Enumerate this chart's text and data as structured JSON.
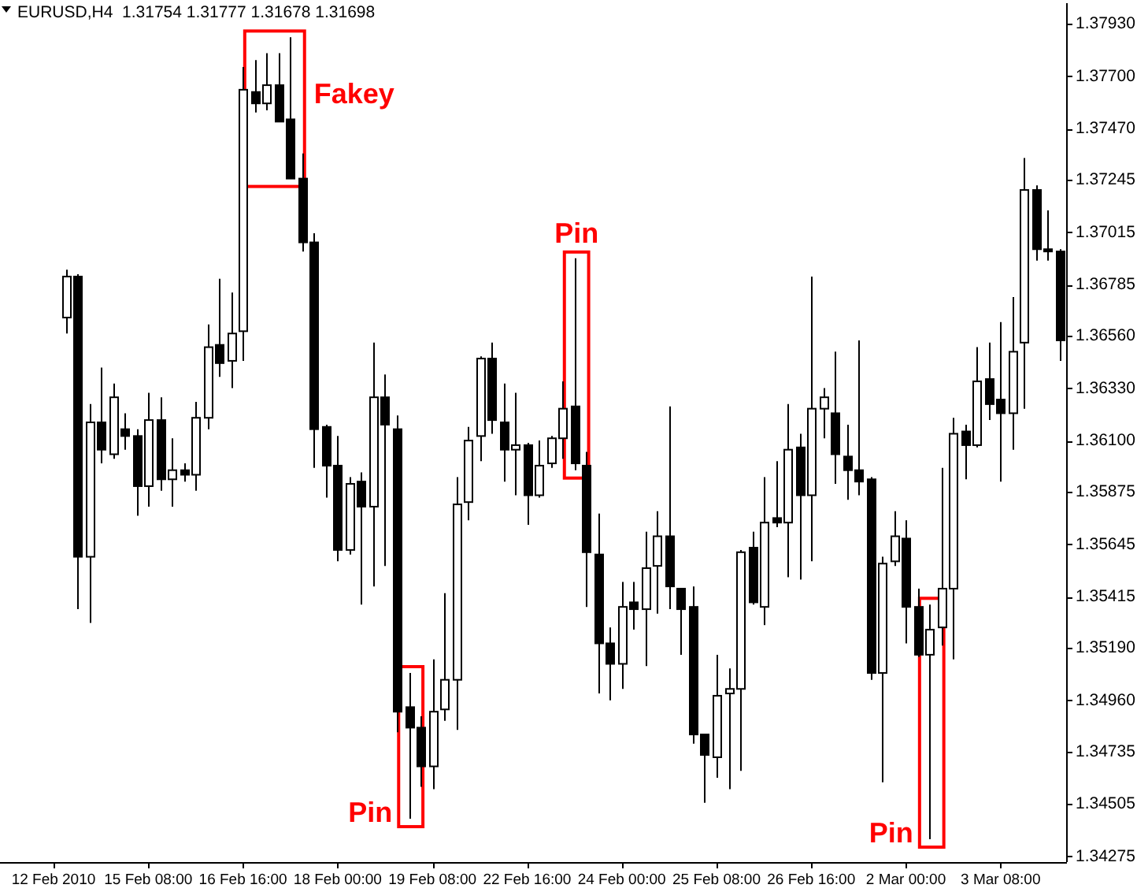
{
  "chart_data": {
    "type": "candlestick",
    "title": "EURUSD,H4  1.31754 1.31777 1.31678 1.31698",
    "categories": [
      "12 Feb 2010",
      null,
      null,
      null,
      null,
      null,
      null,
      null,
      "15 Feb 08:00",
      null,
      null,
      null,
      null,
      null,
      null,
      null,
      "16 Feb 16:00",
      null,
      null,
      null,
      null,
      null,
      null,
      null,
      "18 Feb 00:00",
      null,
      null,
      null,
      null,
      null,
      null,
      null,
      "19 Feb 08:00",
      null,
      null,
      null,
      null,
      null,
      null,
      null,
      "22 Feb 16:00",
      null,
      null,
      null,
      null,
      null,
      null,
      null,
      "24 Feb 00:00",
      null,
      null,
      null,
      null,
      null,
      null,
      null,
      "25 Feb 08:00",
      null,
      null,
      null,
      null,
      null,
      null,
      null,
      "26 Feb 16:00",
      null,
      null,
      null,
      null,
      null,
      null,
      null,
      "2 Mar 00:00",
      null,
      null,
      null,
      null,
      null,
      null,
      null,
      "3 Mar 08:00",
      null,
      null,
      null,
      null,
      null
    ],
    "ohlc": [
      null,
      [
        1.3664,
        1.3685,
        1.3657,
        1.3682
      ],
      [
        1.3682,
        1.3683,
        1.3536,
        1.3559
      ],
      [
        1.3559,
        1.3626,
        1.353,
        1.3618
      ],
      [
        1.3618,
        1.3642,
        1.36,
        1.3606
      ],
      [
        1.3604,
        1.3635,
        1.3602,
        1.3629
      ],
      [
        1.3615,
        1.3622,
        1.3606,
        1.3612
      ],
      [
        1.3612,
        1.3615,
        1.3577,
        1.359
      ],
      [
        1.359,
        1.3631,
        1.3581,
        1.3619
      ],
      [
        1.3619,
        1.3629,
        1.3588,
        1.3593
      ],
      [
        1.3593,
        1.3611,
        1.3581,
        1.3597
      ],
      [
        1.3597,
        1.36,
        1.3592,
        1.3595
      ],
      [
        1.3595,
        1.3627,
        1.3588,
        1.362
      ],
      [
        1.362,
        1.3661,
        1.3615,
        1.3651
      ],
      [
        1.3652,
        1.3681,
        1.3638,
        1.3644
      ],
      [
        1.3645,
        1.3675,
        1.3633,
        1.3657
      ],
      [
        1.3658,
        1.3774,
        1.3645,
        1.3764
      ],
      [
        1.3763,
        1.3777,
        1.3754,
        1.3758
      ],
      [
        1.3758,
        1.378,
        1.3755,
        1.3766
      ],
      [
        1.3766,
        1.378,
        1.375,
        1.375
      ],
      [
        1.3751,
        1.3787,
        1.3725,
        1.3725
      ],
      [
        1.3725,
        1.3736,
        1.3693,
        1.3697
      ],
      [
        1.3697,
        1.3701,
        1.3598,
        1.3615
      ],
      [
        1.3616,
        1.3617,
        1.3585,
        1.3599
      ],
      [
        1.3599,
        1.3612,
        1.3557,
        1.3562
      ],
      [
        1.3562,
        1.3594,
        1.356,
        1.3591
      ],
      [
        1.3592,
        1.3596,
        1.3538,
        1.3581
      ],
      [
        1.3581,
        1.3653,
        1.3546,
        1.3629
      ],
      [
        1.3629,
        1.3639,
        1.3555,
        1.3617
      ],
      [
        1.3615,
        1.3621,
        1.3482,
        1.3491
      ],
      [
        1.3493,
        1.3508,
        1.3444,
        1.3484
      ],
      [
        1.3484,
        1.3489,
        1.3458,
        1.3467
      ],
      [
        1.3467,
        1.3514,
        1.3457,
        1.3491
      ],
      [
        1.3492,
        1.3543,
        1.3487,
        1.3505
      ],
      [
        1.3505,
        1.3594,
        1.3483,
        1.3582
      ],
      [
        1.3583,
        1.3616,
        1.3575,
        1.361
      ],
      [
        1.3612,
        1.3647,
        1.3601,
        1.3646
      ],
      [
        1.3646,
        1.3653,
        1.3613,
        1.3619
      ],
      [
        1.3618,
        1.3635,
        1.3592,
        1.3606
      ],
      [
        1.3606,
        1.3631,
        1.3586,
        1.3608
      ],
      [
        1.3608,
        1.3609,
        1.3573,
        1.3586
      ],
      [
        1.3586,
        1.361,
        1.3585,
        1.3599
      ],
      [
        1.36,
        1.3612,
        1.3598,
        1.3611
      ],
      [
        1.3611,
        1.3636,
        1.3602,
        1.3624
      ],
      [
        1.3625,
        1.369,
        1.3597,
        1.36
      ],
      [
        1.3599,
        1.3605,
        1.3537,
        1.3561
      ],
      [
        1.356,
        1.3578,
        1.3499,
        1.3521
      ],
      [
        1.3521,
        1.3528,
        1.3496,
        1.3512
      ],
      [
        1.3512,
        1.3548,
        1.3501,
        1.3537
      ],
      [
        1.3539,
        1.3548,
        1.3527,
        1.3536
      ],
      [
        1.3536,
        1.357,
        1.3511,
        1.3554
      ],
      [
        1.3555,
        1.3579,
        1.3534,
        1.3568
      ],
      [
        1.3568,
        1.3625,
        1.3536,
        1.3546
      ],
      [
        1.3545,
        1.3545,
        1.3516,
        1.3536
      ],
      [
        1.3537,
        1.3546,
        1.3477,
        1.3481
      ],
      [
        1.3481,
        1.3481,
        1.3451,
        1.3472
      ],
      [
        1.3471,
        1.3516,
        1.3462,
        1.3498
      ],
      [
        1.3499,
        1.351,
        1.3457,
        1.3501
      ],
      [
        1.3501,
        1.3562,
        1.3465,
        1.3561
      ],
      [
        1.3563,
        1.357,
        1.3538,
        1.3539
      ],
      [
        1.3537,
        1.3594,
        1.3529,
        1.3574
      ],
      [
        1.3576,
        1.3601,
        1.3572,
        1.3574
      ],
      [
        1.3574,
        1.3626,
        1.355,
        1.3606
      ],
      [
        1.3607,
        1.3613,
        1.3549,
        1.3586
      ],
      [
        1.3586,
        1.3682,
        1.3557,
        1.3624
      ],
      [
        1.3624,
        1.3633,
        1.3611,
        1.3629
      ],
      [
        1.3622,
        1.3649,
        1.3591,
        1.3604
      ],
      [
        1.3603,
        1.3617,
        1.3584,
        1.3597
      ],
      [
        1.3597,
        1.3654,
        1.3586,
        1.3592
      ],
      [
        1.3593,
        1.3594,
        1.3505,
        1.3508
      ],
      [
        1.3508,
        1.3559,
        1.346,
        1.3556
      ],
      [
        1.3557,
        1.3579,
        1.3555,
        1.3568
      ],
      [
        1.3567,
        1.3575,
        1.3521,
        1.3537
      ],
      [
        1.3537,
        1.3545,
        1.3515,
        1.3516
      ],
      [
        1.3516,
        1.3538,
        1.3435,
        1.3527
      ],
      [
        1.3528,
        1.3598,
        1.352,
        1.3545
      ],
      [
        1.3545,
        1.362,
        1.3514,
        1.3613
      ],
      [
        1.3614,
        1.3617,
        1.3593,
        1.3608
      ],
      [
        1.3608,
        1.3651,
        1.3607,
        1.3636
      ],
      [
        1.3637,
        1.3653,
        1.3619,
        1.3626
      ],
      [
        1.3628,
        1.3662,
        1.3592,
        1.3622
      ],
      [
        1.3622,
        1.3673,
        1.3606,
        1.3649
      ],
      [
        1.3653,
        1.3734,
        1.3624,
        1.372
      ],
      [
        1.372,
        1.3722,
        1.3689,
        1.3694
      ],
      [
        1.3694,
        1.3711,
        1.3689,
        1.3693
      ],
      [
        1.3693,
        1.3694,
        1.3645,
        1.3654
      ]
    ],
    "ylim": [
      1.3425,
      1.3802
    ],
    "yticks": [
      1.34275,
      1.34505,
      1.34735,
      {
        "value": 1.3496,
        "label": "1.34960"
      },
      {
        "value": 1.3519,
        "label": "1.35190"
      },
      1.35415,
      1.35645,
      1.35875,
      {
        "value": 1.361,
        "label": "1.36100"
      },
      {
        "value": 1.3633,
        "label": "1.36330"
      },
      {
        "value": 1.3656,
        "label": "1.36560"
      },
      1.36785,
      1.37015,
      1.37245,
      {
        "value": 1.3747,
        "label": "1.37470"
      },
      {
        "value": 1.377,
        "label": "1.37700"
      },
      {
        "value": 1.3793,
        "label": "1.37930"
      }
    ],
    "annotations": [
      "Fakey",
      "Pin",
      "Pin",
      "Pin"
    ]
  }
}
